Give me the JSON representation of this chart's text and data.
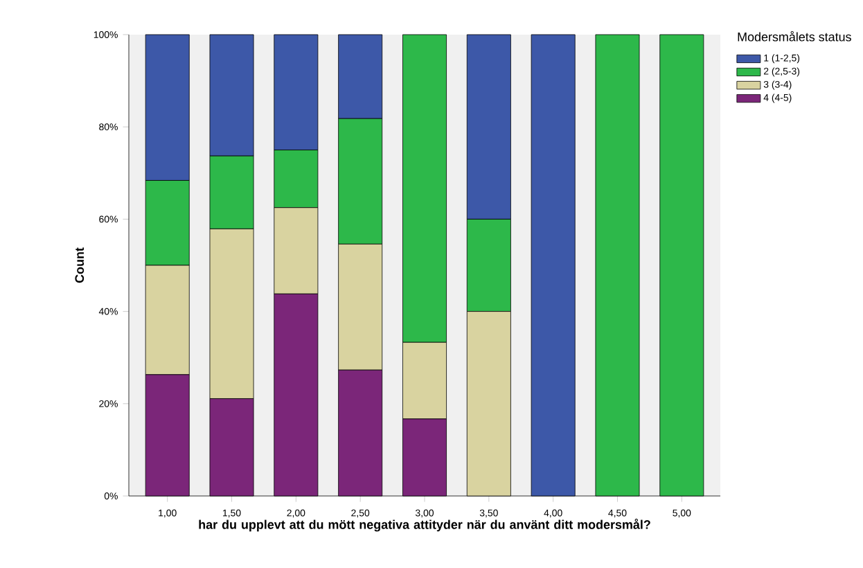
{
  "chart_data": {
    "type": "bar",
    "stacked": true,
    "xlabel": "har du upplevt att du mött negativa attityder när du använt ditt modersmål?",
    "ylabel": "Count",
    "legend_title": "Modersmålets status",
    "categories": [
      "1,00",
      "1,50",
      "2,00",
      "2,50",
      "3,00",
      "3,50",
      "4,00",
      "4,50",
      "5,00"
    ],
    "series": [
      {
        "name": "4 (4-5)",
        "color": "#7b2679",
        "values": [
          26.3,
          21.1,
          43.8,
          27.3,
          16.7,
          0,
          0,
          0,
          0
        ]
      },
      {
        "name": "3 (3-4)",
        "color": "#d9d3a0",
        "values": [
          23.7,
          36.8,
          18.7,
          27.3,
          16.6,
          40,
          0,
          0,
          0
        ]
      },
      {
        "name": "2 (2,5-3)",
        "color": "#2db84a",
        "values": [
          18.4,
          15.8,
          12.5,
          27.2,
          66.7,
          20,
          0,
          100,
          100
        ]
      },
      {
        "name": "1 (1-2,5)",
        "color": "#3d58a8",
        "values": [
          31.6,
          26.3,
          25,
          18.2,
          0,
          40,
          100,
          0,
          0
        ]
      }
    ],
    "ylim": [
      0,
      100
    ],
    "yticks": [
      {
        "value": 0,
        "label": "0%"
      },
      {
        "value": 20,
        "label": "20%"
      },
      {
        "value": 40,
        "label": "40%"
      },
      {
        "value": 60,
        "label": "60%"
      },
      {
        "value": 80,
        "label": "80%"
      },
      {
        "value": 100,
        "label": "100%"
      }
    ],
    "legend": "right"
  }
}
